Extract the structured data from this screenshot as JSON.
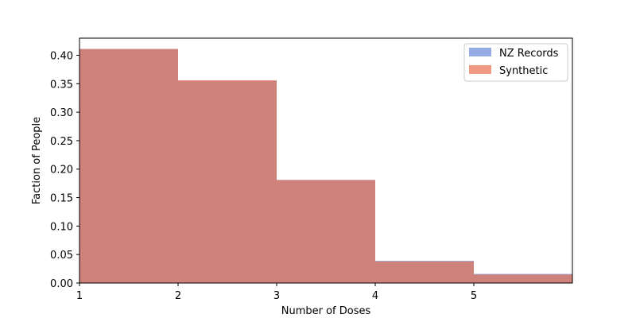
{
  "chart_data": {
    "type": "bar",
    "xlabel": "Number of Doses",
    "ylabel": "Faction of People",
    "xlim": [
      1,
      6
    ],
    "ylim": [
      0,
      0.43
    ],
    "x_ticks": [
      "1",
      "2",
      "3",
      "4",
      "5"
    ],
    "y_ticks": [
      "0.00",
      "0.05",
      "0.10",
      "0.15",
      "0.20",
      "0.25",
      "0.30",
      "0.35",
      "0.40"
    ],
    "bins": [
      [
        1,
        2
      ],
      [
        2,
        3
      ],
      [
        3,
        4
      ],
      [
        4,
        5
      ],
      [
        5,
        6
      ]
    ],
    "series": [
      {
        "name": "NZ Records",
        "values": [
          0.411,
          0.355,
          0.181,
          0.039,
          0.016
        ],
        "color": "#6688d8",
        "opacity": 0.7
      },
      {
        "name": "Synthetic",
        "values": [
          0.411,
          0.356,
          0.181,
          0.038,
          0.015
        ],
        "color": "#e8704e",
        "opacity": 0.7
      }
    ],
    "legend_position": "top-right",
    "grid": false
  }
}
